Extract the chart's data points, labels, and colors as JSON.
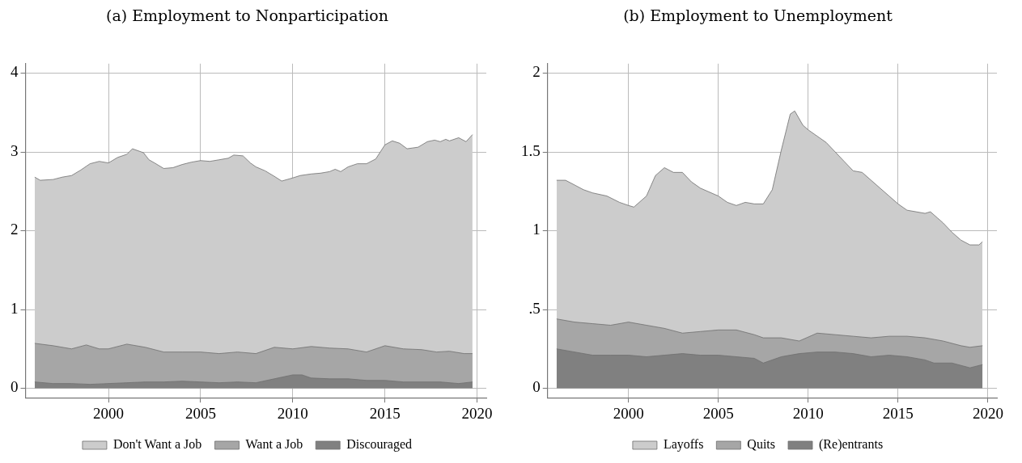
{
  "chart_data": [
    {
      "type": "area",
      "title": "(a) Employment to Nonparticipation",
      "xlim": [
        1995.5,
        2020.5
      ],
      "xticks": [
        2000,
        2005,
        2010,
        2015,
        2020
      ],
      "ylim": [
        -0.12,
        4.12
      ],
      "yticks": [
        0,
        1,
        2,
        3,
        4
      ],
      "grid": true,
      "legend": "bottom",
      "series": [
        {
          "name": "Don't Want a Job",
          "color": "#cccccc",
          "x": [
            1996.0,
            1996.3,
            1997.0,
            1997.5,
            1998.0,
            1998.5,
            1999.0,
            1999.5,
            2000.0,
            2000.5,
            2001.0,
            2001.3,
            2001.9,
            2002.2,
            2002.5,
            2003.0,
            2003.5,
            2004.0,
            2004.5,
            2005.0,
            2005.5,
            2006.0,
            2006.5,
            2006.8,
            2007.3,
            2007.7,
            2008.0,
            2008.5,
            2009.0,
            2009.4,
            2010.0,
            2010.4,
            2011.0,
            2011.5,
            2012.0,
            2012.3,
            2012.6,
            2013.0,
            2013.5,
            2014.0,
            2014.5,
            2015.0,
            2015.4,
            2015.8,
            2016.2,
            2016.8,
            2017.3,
            2017.7,
            2018.0,
            2018.3,
            2018.5,
            2019.0,
            2019.4,
            2019.75
          ],
          "values": [
            2.68,
            2.64,
            2.65,
            2.68,
            2.7,
            2.77,
            2.85,
            2.88,
            2.86,
            2.93,
            2.97,
            3.04,
            2.99,
            2.9,
            2.86,
            2.79,
            2.8,
            2.84,
            2.87,
            2.89,
            2.88,
            2.9,
            2.92,
            2.96,
            2.95,
            2.86,
            2.81,
            2.76,
            2.69,
            2.63,
            2.67,
            2.7,
            2.72,
            2.73,
            2.75,
            2.78,
            2.75,
            2.81,
            2.85,
            2.85,
            2.91,
            3.09,
            3.14,
            3.11,
            3.04,
            3.06,
            3.13,
            3.15,
            3.13,
            3.16,
            3.14,
            3.18,
            3.13,
            3.22
          ]
        },
        {
          "name": "Want a Job",
          "color": "#a6a6a6",
          "x": [
            1996.0,
            1997.0,
            1998.0,
            1998.8,
            1999.5,
            2000.0,
            2001.0,
            2002.0,
            2003.0,
            2004.0,
            2005.0,
            2006.0,
            2007.0,
            2008.0,
            2009.0,
            2010.0,
            2011.0,
            2012.0,
            2013.0,
            2014.0,
            2015.0,
            2016.0,
            2017.0,
            2017.8,
            2018.5,
            2019.3,
            2019.75
          ],
          "values": [
            0.57,
            0.54,
            0.5,
            0.55,
            0.5,
            0.5,
            0.56,
            0.52,
            0.46,
            0.46,
            0.46,
            0.44,
            0.46,
            0.44,
            0.52,
            0.5,
            0.53,
            0.51,
            0.5,
            0.46,
            0.54,
            0.5,
            0.49,
            0.46,
            0.47,
            0.44,
            0.44
          ]
        },
        {
          "name": "Discouraged",
          "color": "#808080",
          "x": [
            1996.0,
            1997.0,
            1998.0,
            1999.0,
            2000.0,
            2001.0,
            2002.0,
            2003.0,
            2004.0,
            2005.0,
            2006.0,
            2007.0,
            2008.0,
            2009.0,
            2010.0,
            2010.5,
            2011.0,
            2012.0,
            2013.0,
            2014.0,
            2015.0,
            2016.0,
            2017.0,
            2018.0,
            2019.0,
            2019.75
          ],
          "values": [
            0.08,
            0.06,
            0.06,
            0.05,
            0.06,
            0.07,
            0.08,
            0.08,
            0.09,
            0.08,
            0.07,
            0.08,
            0.07,
            0.12,
            0.17,
            0.17,
            0.13,
            0.12,
            0.12,
            0.1,
            0.1,
            0.08,
            0.08,
            0.08,
            0.06,
            0.08
          ]
        }
      ]
    },
    {
      "type": "area",
      "title": "(b) Employment to Unemployment",
      "xlim": [
        1995.5,
        2020.5
      ],
      "xticks": [
        2000,
        2005,
        2010,
        2015,
        2020
      ],
      "ylim": [
        -0.06,
        2.06
      ],
      "yticks": [
        0,
        {
          "value": 0.5,
          "label": ".5"
        },
        1,
        1.5,
        2
      ],
      "grid": true,
      "legend": "bottom",
      "series": [
        {
          "name": "Layoffs",
          "color": "#cccccc",
          "x": [
            1996.0,
            1996.5,
            1997.0,
            1997.5,
            1998.0,
            1998.8,
            1999.5,
            2000.0,
            2000.3,
            2001.0,
            2001.5,
            2002.0,
            2002.5,
            2003.0,
            2003.5,
            2004.0,
            2005.0,
            2005.5,
            2006.0,
            2006.5,
            2007.0,
            2007.5,
            2008.0,
            2008.5,
            2009.0,
            2009.25,
            2009.7,
            2010.0,
            2010.5,
            2011.0,
            2011.5,
            2012.0,
            2012.5,
            2013.0,
            2013.5,
            2014.0,
            2014.5,
            2015.0,
            2015.5,
            2016.0,
            2016.5,
            2016.8,
            2017.2,
            2017.5,
            2018.0,
            2018.5,
            2019.0,
            2019.5,
            2019.7
          ],
          "values": [
            1.32,
            1.32,
            1.29,
            1.26,
            1.24,
            1.22,
            1.18,
            1.16,
            1.15,
            1.22,
            1.35,
            1.4,
            1.37,
            1.37,
            1.31,
            1.27,
            1.22,
            1.18,
            1.16,
            1.18,
            1.17,
            1.17,
            1.26,
            1.51,
            1.74,
            1.76,
            1.67,
            1.64,
            1.6,
            1.56,
            1.5,
            1.44,
            1.38,
            1.37,
            1.32,
            1.27,
            1.22,
            1.17,
            1.13,
            1.12,
            1.11,
            1.12,
            1.08,
            1.05,
            0.99,
            0.94,
            0.91,
            0.91,
            0.93
          ]
        },
        {
          "name": "Quits",
          "color": "#a6a6a6",
          "x": [
            1996.0,
            1997.0,
            1998.0,
            1999.0,
            2000.0,
            2001.0,
            2002.0,
            2003.0,
            2004.0,
            2005.0,
            2006.0,
            2007.0,
            2007.5,
            2008.5,
            2009.5,
            2010.5,
            2011.5,
            2012.5,
            2013.5,
            2014.5,
            2015.5,
            2016.5,
            2017.5,
            2018.5,
            2019.0,
            2019.7
          ],
          "values": [
            0.44,
            0.42,
            0.41,
            0.4,
            0.42,
            0.4,
            0.38,
            0.35,
            0.36,
            0.37,
            0.37,
            0.34,
            0.32,
            0.32,
            0.3,
            0.35,
            0.34,
            0.33,
            0.32,
            0.33,
            0.33,
            0.32,
            0.3,
            0.27,
            0.26,
            0.27
          ]
        },
        {
          "name": "(Re)entrants",
          "color": "#808080",
          "x": [
            1996.0,
            1997.0,
            1998.0,
            1999.0,
            2000.0,
            2001.0,
            2002.0,
            2003.0,
            2004.0,
            2005.0,
            2006.0,
            2007.0,
            2007.5,
            2008.5,
            2009.5,
            2010.5,
            2011.5,
            2012.5,
            2013.5,
            2014.5,
            2015.5,
            2016.5,
            2017.0,
            2018.0,
            2019.0,
            2019.7
          ],
          "values": [
            0.25,
            0.23,
            0.21,
            0.21,
            0.21,
            0.2,
            0.21,
            0.22,
            0.21,
            0.21,
            0.2,
            0.19,
            0.16,
            0.2,
            0.22,
            0.23,
            0.23,
            0.22,
            0.2,
            0.21,
            0.2,
            0.18,
            0.16,
            0.16,
            0.13,
            0.15
          ]
        }
      ]
    }
  ]
}
